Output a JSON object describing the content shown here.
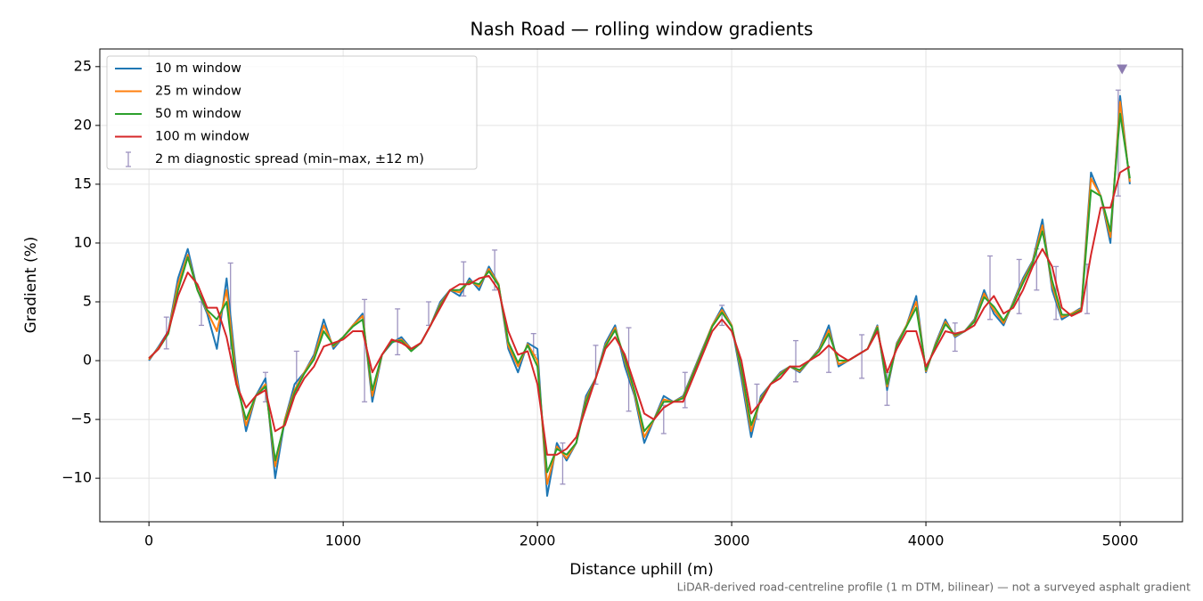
{
  "chart_data": {
    "type": "line",
    "title": "Nash Road — rolling window gradients",
    "x_label": "Distance uphill (m)",
    "y_label": "Gradient (%)",
    "footnote": "LiDAR-derived road-centreline profile (1 m DTM, bilinear) — not a surveyed asphalt gradient",
    "xlim": [
      -253,
      5321
    ],
    "ylim": [
      -13.7,
      26.5
    ],
    "xticks": [
      0,
      1000,
      2000,
      3000,
      4000,
      5000
    ],
    "yticks": [
      {
        "value": -10,
        "label": "−10"
      },
      {
        "value": -5,
        "label": "−5"
      },
      0,
      5,
      10,
      15,
      20,
      25
    ],
    "grid": true,
    "legend": "upper left",
    "x": [
      0,
      50,
      100,
      150,
      200,
      250,
      300,
      350,
      400,
      450,
      500,
      550,
      600,
      650,
      700,
      750,
      800,
      850,
      900,
      950,
      1000,
      1050,
      1100,
      1150,
      1200,
      1250,
      1300,
      1350,
      1400,
      1450,
      1500,
      1550,
      1600,
      1650,
      1700,
      1750,
      1800,
      1850,
      1900,
      1950,
      2000,
      2050,
      2100,
      2150,
      2200,
      2250,
      2300,
      2350,
      2400,
      2450,
      2500,
      2550,
      2600,
      2650,
      2700,
      2750,
      2800,
      2850,
      2900,
      2950,
      3000,
      3050,
      3100,
      3150,
      3200,
      3250,
      3300,
      3350,
      3400,
      3450,
      3500,
      3550,
      3600,
      3650,
      3700,
      3750,
      3800,
      3850,
      3900,
      3950,
      4000,
      4050,
      4100,
      4150,
      4200,
      4250,
      4300,
      4350,
      4400,
      4450,
      4500,
      4550,
      4600,
      4650,
      4700,
      4750,
      4800,
      4850,
      4900,
      4950,
      5000,
      5050
    ],
    "series": [
      {
        "name": "10 m window",
        "color": "#1f77b4",
        "values": [
          0,
          1.2,
          2.5,
          7,
          9.5,
          6,
          4,
          1,
          7,
          -1,
          -6,
          -3,
          -1.5,
          -10,
          -5,
          -2,
          -1,
          0.5,
          3.5,
          1,
          2,
          3,
          4,
          -3.5,
          0.5,
          1.5,
          2,
          1,
          1.5,
          3,
          5,
          6,
          5.5,
          7,
          6,
          8,
          6.5,
          1,
          -1,
          1.5,
          1,
          -11.5,
          -7,
          -8.5,
          -7,
          -3,
          -1.5,
          1.5,
          3,
          -0.5,
          -3,
          -7,
          -5,
          -3,
          -3.5,
          -3,
          -1,
          1,
          3,
          4.5,
          3,
          -1.5,
          -6.5,
          -3,
          -2,
          -1,
          -0.5,
          -1,
          0,
          1,
          3,
          -0.5,
          0,
          0.5,
          1,
          3,
          -2.5,
          1.5,
          3,
          5.5,
          -1,
          1.5,
          3.5,
          2,
          2.5,
          3.5,
          6,
          4,
          3,
          5,
          7,
          8.5,
          12,
          6,
          3.5,
          4,
          4.5,
          16,
          14,
          10,
          22.5,
          15
        ]
      },
      {
        "name": "25 m window",
        "color": "#ff7f0e",
        "values": [
          0.1,
          1.1,
          2.4,
          6.5,
          9,
          6,
          4.2,
          2.5,
          6,
          -1.5,
          -5.5,
          -3,
          -2,
          -9,
          -5,
          -2.5,
          -1,
          0.3,
          3,
          1.2,
          2,
          3,
          3.8,
          -3,
          0.5,
          1.6,
          1.8,
          1,
          1.5,
          3,
          4.8,
          6,
          5.8,
          6.8,
          6.3,
          7.8,
          6.5,
          1.3,
          -0.5,
          1.4,
          0,
          -10.5,
          -7.3,
          -8.3,
          -7,
          -3.3,
          -1.5,
          1.3,
          2.8,
          0,
          -2.8,
          -6.5,
          -5,
          -3.3,
          -3.5,
          -3.1,
          -1.1,
          0.9,
          3,
          4.3,
          3,
          -1,
          -6,
          -3.2,
          -2,
          -1.1,
          -0.5,
          -0.9,
          0,
          0.9,
          2.6,
          -0.3,
          0,
          0.5,
          1,
          2.9,
          -2.2,
          1.4,
          3,
          5,
          -0.9,
          1.4,
          3.3,
          2.1,
          2.5,
          3.4,
          5.7,
          4.3,
          3.2,
          4.9,
          6.8,
          8.4,
          11.5,
          6.4,
          3.7,
          4,
          4.4,
          15.5,
          14,
          10.5,
          22,
          15.2
        ]
      },
      {
        "name": "50 m window",
        "color": "#2ca02c",
        "values": [
          0.2,
          1,
          2.3,
          6,
          8.8,
          6,
          4.3,
          3.5,
          5,
          -2,
          -5,
          -3,
          -2.2,
          -8.5,
          -5.2,
          -2.7,
          -1.1,
          0.1,
          2.5,
          1.3,
          2,
          2.9,
          3.5,
          -2.5,
          0.5,
          1.6,
          1.7,
          0.8,
          1.5,
          3,
          4.7,
          6,
          6,
          6.7,
          6.5,
          7.6,
          6.4,
          1.6,
          -0.2,
          1.3,
          -0.5,
          -9.5,
          -7.5,
          -8,
          -7,
          -3.5,
          -1.5,
          1.2,
          2.6,
          0.2,
          -2.6,
          -6,
          -5,
          -3.5,
          -3.5,
          -3.2,
          -1.2,
          0.8,
          2.9,
          4.1,
          2.9,
          -0.7,
          -5.5,
          -3.3,
          -2,
          -1.2,
          -0.5,
          -0.8,
          0,
          0.8,
          2.3,
          0,
          0,
          0.5,
          1,
          2.8,
          -2,
          1.3,
          2.9,
          4.5,
          -0.8,
          1.3,
          3.1,
          2.2,
          2.5,
          3.3,
          5.4,
          4.6,
          3.4,
          4.8,
          6.6,
          8.3,
          11,
          6.8,
          3.9,
          3.9,
          4.3,
          14.5,
          14,
          11,
          21,
          15.5
        ]
      },
      {
        "name": "100 m window",
        "color": "#d62728",
        "values": [
          0.2,
          1,
          2.5,
          5.5,
          7.5,
          6.5,
          4.5,
          4.5,
          2,
          -2,
          -4,
          -3,
          -2.5,
          -6,
          -5.5,
          -3,
          -1.5,
          -0.5,
          1.2,
          1.5,
          1.8,
          2.5,
          2.5,
          -1,
          0.5,
          1.8,
          1.5,
          1,
          1.5,
          3,
          4.5,
          6,
          6.5,
          6.5,
          7,
          7.2,
          6,
          2.5,
          0.5,
          0.8,
          -2,
          -8,
          -8,
          -7.5,
          -6.5,
          -4,
          -1.5,
          1,
          2,
          0.5,
          -2,
          -4.5,
          -5,
          -4,
          -3.5,
          -3.5,
          -1.5,
          0.5,
          2.5,
          3.5,
          2.5,
          0,
          -4.5,
          -3.5,
          -2,
          -1.5,
          -0.5,
          -0.5,
          0,
          0.5,
          1.3,
          0.5,
          0,
          0.5,
          1,
          2.5,
          -1,
          1,
          2.5,
          2.5,
          -0.5,
          1,
          2.5,
          2.3,
          2.5,
          3,
          4.5,
          5.5,
          4,
          4.5,
          6,
          8,
          9.5,
          8,
          4.5,
          3.8,
          4.2,
          9,
          13,
          13,
          16,
          16.5
        ]
      }
    ],
    "errorbars": {
      "name": "2 m diagnostic spread (min–max, ±12 m)",
      "color": "#9d93c0",
      "x": [
        90,
        270,
        420,
        600,
        760,
        1110,
        1280,
        1440,
        1620,
        1780,
        1980,
        2130,
        2300,
        2470,
        2650,
        2760,
        2950,
        3130,
        3330,
        3500,
        3670,
        3800,
        4150,
        4330,
        4480,
        4570,
        4670,
        4830,
        4990
      ],
      "low": [
        1,
        3,
        1,
        -3.5,
        -2.5,
        -3.5,
        0.5,
        3,
        5.5,
        6,
        0.5,
        -10.5,
        -2,
        -4.3,
        -6.2,
        -4,
        3,
        -5,
        -1.8,
        -1,
        -1.5,
        -3.8,
        0.8,
        3.5,
        4,
        6,
        3.5,
        4,
        14
      ],
      "high": [
        3.7,
        5,
        8.3,
        -1,
        0.8,
        5.2,
        4.4,
        5,
        8.4,
        9.4,
        2.3,
        -7,
        1.3,
        2.8,
        -3.8,
        -1,
        4.7,
        -2,
        1.7,
        2.3,
        2.2,
        -1,
        3.2,
        8.9,
        8.6,
        9.5,
        8,
        8.2,
        23
      ]
    },
    "peak_marker": {
      "x": 5010,
      "y": 24.8,
      "color": "#8c7bb0"
    }
  }
}
